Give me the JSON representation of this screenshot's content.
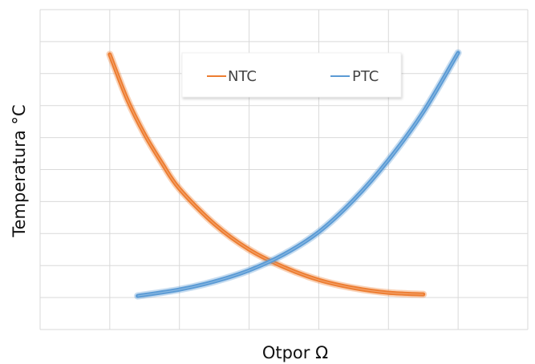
{
  "chart_data": {
    "type": "line",
    "title": "",
    "xlabel": "Otpor Ω",
    "ylabel": "Temperatura  °C",
    "xlim": [
      0,
      7
    ],
    "ylim": [
      0,
      10
    ],
    "x_ticks_labeled": false,
    "y_ticks_labeled": false,
    "grid": true,
    "legend": "top-center",
    "series": [
      {
        "name": "NTC",
        "color": "#ED7D31",
        "x": [
          1.0,
          1.25,
          1.5,
          1.75,
          2.0,
          2.5,
          3.0,
          3.5,
          4.0,
          4.5,
          5.0,
          5.5
        ],
        "y": [
          8.6,
          7.2,
          6.1,
          5.2,
          4.4,
          3.3,
          2.5,
          1.95,
          1.55,
          1.3,
          1.15,
          1.1
        ]
      },
      {
        "name": "PTC",
        "color": "#5B9BD5",
        "x": [
          1.4,
          2.0,
          2.5,
          3.0,
          3.5,
          4.0,
          4.5,
          5.0,
          5.5,
          6.0
        ],
        "y": [
          1.05,
          1.25,
          1.5,
          1.85,
          2.35,
          3.05,
          4.05,
          5.3,
          6.8,
          8.65
        ]
      }
    ]
  }
}
